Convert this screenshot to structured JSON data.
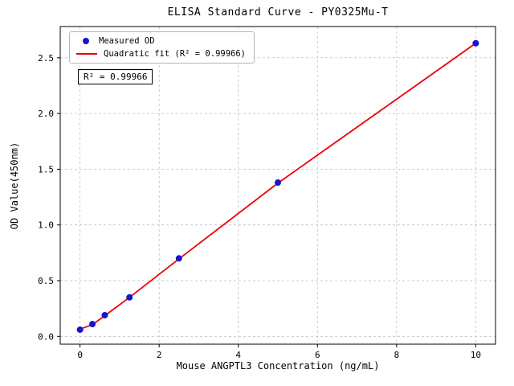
{
  "chart_data": {
    "type": "scatter",
    "title": "ELISA Standard Curve - PY0325Mu-T",
    "xlabel": "Mouse ANGPTL3 Concentration (ng/mL)",
    "ylabel": "OD Value(450nm)",
    "xlim": [
      -0.5,
      10.5
    ],
    "ylim": [
      -0.07,
      2.78
    ],
    "xticks": [
      0,
      2,
      4,
      6,
      8,
      10
    ],
    "xticklabels": [
      "0",
      "2",
      "4",
      "6",
      "8",
      "10"
    ],
    "yticks": [
      0.0,
      0.5,
      1.0,
      1.5,
      2.0,
      2.5
    ],
    "yticklabels": [
      "0.0",
      "0.5",
      "1.0",
      "1.5",
      "2.0",
      "2.5"
    ],
    "grid": true,
    "legend_position": "upper left",
    "annotation": "R² = 0.99966",
    "series": [
      {
        "name": "Measured OD",
        "type": "scatter",
        "color": "#1515cc",
        "x": [
          0,
          0.3125,
          0.625,
          1.25,
          2.5,
          5,
          10
        ],
        "y": [
          0.06,
          0.11,
          0.19,
          0.35,
          0.7,
          1.38,
          2.63
        ]
      },
      {
        "name": "Quadratic fit (R² = 0.99966)",
        "type": "line",
        "color": "#ee0000",
        "x": [
          0,
          0.3125,
          0.625,
          1.25,
          2.5,
          5,
          10
        ],
        "y": [
          0.065,
          0.105,
          0.185,
          0.35,
          0.695,
          1.375,
          2.63
        ]
      }
    ]
  }
}
